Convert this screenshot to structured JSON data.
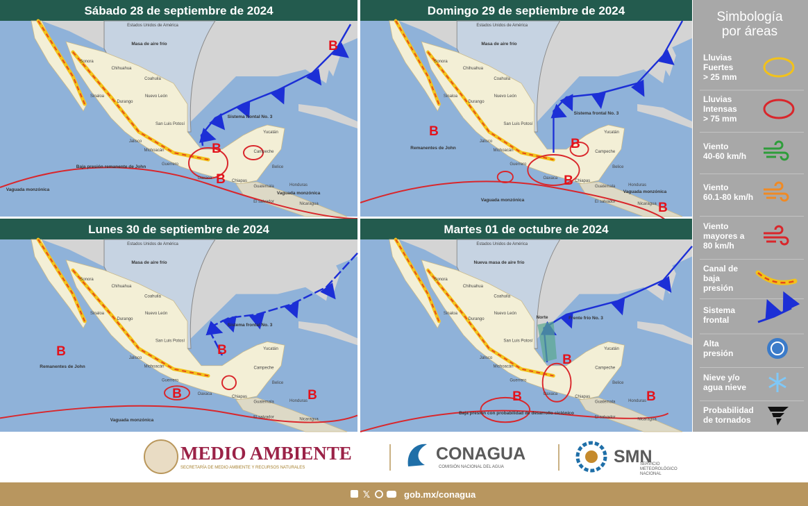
{
  "panels": [
    {
      "title": "Sábado 28 de septiembre de 2024",
      "labels": [
        "Masa de aire frío",
        "Sistema frontal No. 3",
        "Baja presión remanente de John",
        "Vaguada monzónica",
        "Vaguada monzónica"
      ],
      "pressure_centers": [
        "B",
        "B",
        "B"
      ]
    },
    {
      "title": "Domingo 29 de septiembre de 2024",
      "labels": [
        "Masa de aire frío",
        "Sistema frontal No. 3",
        "Remanentes de John",
        "Vaguada monzónica",
        "Vaguada monzónica"
      ],
      "pressure_centers": [
        "B",
        "B",
        "B",
        "B"
      ]
    },
    {
      "title": "Lunes 30 de septiembre de 2024",
      "labels": [
        "Masa de aire frío",
        "Sistema frontal No. 3",
        "Remanentes de John",
        "Vaguada monzónica"
      ],
      "pressure_centers": [
        "B",
        "B",
        "B",
        "B"
      ]
    },
    {
      "title": "Martes 01 de octubre de 2024",
      "labels": [
        "Nueva masa de aire frío",
        "Norte",
        "Frente frío No. 3",
        "Baja presión con probabilidad de desarrollo ciclónico"
      ],
      "pressure_centers": [
        "B",
        "B",
        "B"
      ]
    }
  ],
  "map_labels": [
    "Estados Unidos de América",
    "Sonora",
    "Chihuahua",
    "Coahuila",
    "Nuevo León",
    "Durango",
    "Sinaloa",
    "San Luis Potosí",
    "Jalisco",
    "Michoacán",
    "Guerrero",
    "Oaxaca",
    "Chiapas",
    "Yucatán",
    "Campeche",
    "Belice",
    "Guatemala",
    "El salvador",
    "Honduras",
    "Nicaragua"
  ],
  "legend": {
    "title": [
      "Simbología",
      "por áreas"
    ],
    "items": [
      {
        "label": [
          "Lluvias",
          "Fuertes",
          "> 25 mm"
        ]
      },
      {
        "label": [
          "Lluvias",
          "Intensas",
          "> 75 mm"
        ]
      },
      {
        "label": [
          "Viento",
          "40-60 km/h"
        ]
      },
      {
        "label": [
          "Viento",
          "60.1-80 km/h"
        ]
      },
      {
        "label": [
          "Viento",
          "mayores a",
          "80 km/h"
        ]
      },
      {
        "label": [
          "Canal de",
          "baja",
          "presión"
        ]
      },
      {
        "label": [
          "Sistema",
          "frontal"
        ]
      },
      {
        "label": [
          "Alta",
          "presión"
        ]
      },
      {
        "label": [
          "Nieve y/o",
          "agua nieve"
        ]
      },
      {
        "label": [
          "Probabilidad",
          "de tornados"
        ]
      }
    ]
  },
  "footer": {
    "semarnat": {
      "name": "MEDIO AMBIENTE",
      "subtitle": "SECRETARÍA DE MEDIO AMBIENTE Y RECURSOS NATURALES"
    },
    "conagua": {
      "name": "CONAGUA",
      "subtitle": "COMISIÓN NACIONAL DEL AGUA"
    },
    "smn": {
      "name": "SMN",
      "subtitle": [
        "SERVICIO",
        "METEOROLÓGICO",
        "NACIONAL"
      ]
    },
    "link": "gob.mx/conagua"
  }
}
